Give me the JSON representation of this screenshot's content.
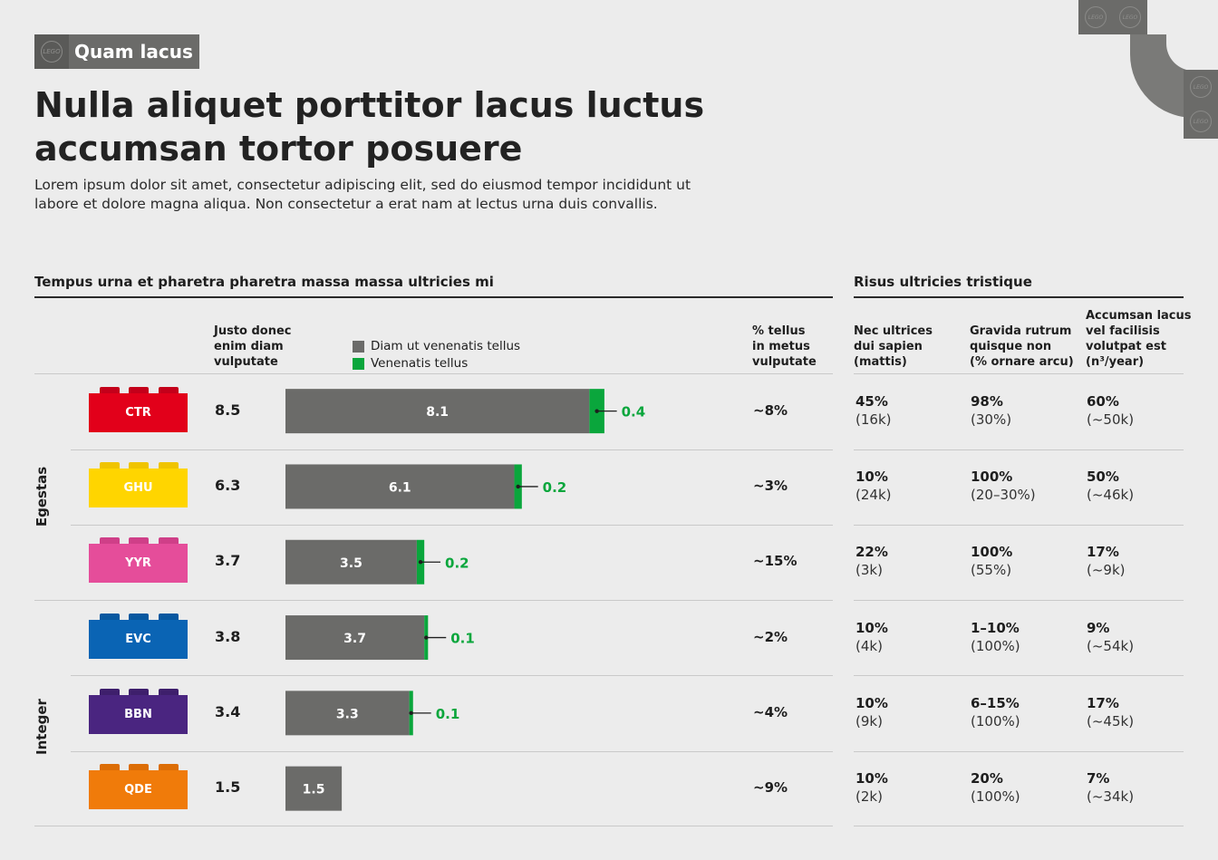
{
  "tag": {
    "label": "Quam lacus",
    "logo_text": "LEGO"
  },
  "title": "Nulla aliquet porttitor lacus luctus accumsan tortor posuere",
  "subtitle": "Lorem ipsum dolor sit amet, consectetur adipiscing elit, sed do eiusmod tempor incididunt ut labore et dolore magna aliqua. Non consectetur a erat nam at lectus urna duis convallis.",
  "left_section": {
    "title": "Tempus urna et pharetra pharetra massa massa ultricies mi",
    "col_total": [
      "Justo donec",
      "enim diam",
      "vulputate"
    ],
    "legend": [
      {
        "label": "Diam ut venenatis tellus",
        "color": "#6b6b69"
      },
      {
        "label": "Venenatis tellus",
        "color": "#0aa63c"
      }
    ],
    "col_pct": [
      "% tellus",
      "in metus",
      "vulputate"
    ]
  },
  "right_section": {
    "title": "Risus ultricies tristique",
    "col1": [
      "Nec ultrices",
      "dui sapien",
      "(mattis)"
    ],
    "col2": [
      "Gravida rutrum",
      "quisque non",
      "(% ornare arcu)"
    ],
    "col3": [
      "Accumsan lacus",
      "vel facilisis",
      "volutpat est",
      "(n³/year)"
    ]
  },
  "groups": [
    "Egestas",
    "Integer"
  ],
  "chart_data": {
    "type": "bar",
    "orientation": "horizontal",
    "stacked": true,
    "categories": [
      "CTR",
      "GHU",
      "YYR",
      "EVC",
      "BBN",
      "QDE"
    ],
    "groups": [
      {
        "name": "Egestas",
        "categories": [
          "CTR",
          "GHU",
          "YYR"
        ]
      },
      {
        "name": "Integer",
        "categories": [
          "EVC",
          "BBN",
          "QDE"
        ]
      }
    ],
    "series": [
      {
        "name": "Diam ut venenatis tellus",
        "color": "#6b6b69",
        "values": [
          8.1,
          6.1,
          3.5,
          3.7,
          3.3,
          1.5
        ]
      },
      {
        "name": "Venenatis tellus",
        "color": "#0aa63c",
        "values": [
          0.4,
          0.2,
          0.2,
          0.1,
          0.1,
          0.0
        ]
      }
    ],
    "xlim": [
      0,
      10
    ],
    "totals": [
      "8.5",
      "6.3",
      "3.7",
      "3.8",
      "3.4",
      "1.5"
    ],
    "grey_labels": [
      "8.1",
      "6.1",
      "3.5",
      "3.7",
      "3.3",
      "1.5"
    ],
    "green_labels": [
      "0.4",
      "0.2",
      "0.2",
      "0.1",
      "0.1",
      ""
    ],
    "percent": [
      "~8%",
      "~3%",
      "~15%",
      "~2%",
      "~4%",
      "~9%"
    ]
  },
  "rows": [
    {
      "code": "CTR",
      "color": "#e2001a",
      "stud": "#c4001a",
      "stat1": [
        "45%",
        "(16k)"
      ],
      "stat2": [
        "98%",
        "(30%)"
      ],
      "stat3": [
        "60%",
        "(~50k)"
      ]
    },
    {
      "code": "GHU",
      "color": "#ffd500",
      "stud": "#f0c400",
      "stat1": [
        "10%",
        "(24k)"
      ],
      "stat2": [
        "100%",
        "(20–30%)"
      ],
      "stat3": [
        "50%",
        "(~46k)"
      ]
    },
    {
      "code": "YYR",
      "color": "#e54d9a",
      "stud": "#cf3f88",
      "stat1": [
        "22%",
        "(3k)"
      ],
      "stat2": [
        "100%",
        "(55%)"
      ],
      "stat3": [
        "17%",
        "(~9k)"
      ]
    },
    {
      "code": "EVC",
      "color": "#0a64b4",
      "stud": "#0858a0",
      "stat1": [
        "10%",
        "(4k)"
      ],
      "stat2": [
        "1–10%",
        "(100%)"
      ],
      "stat3": [
        "9%",
        "(~54k)"
      ]
    },
    {
      "code": "BBN",
      "color": "#4a2580",
      "stud": "#3e1f6c",
      "stat1": [
        "10%",
        "(9k)"
      ],
      "stat2": [
        "6–15%",
        "(100%)"
      ],
      "stat3": [
        "17%",
        "(~45k)"
      ]
    },
    {
      "code": "QDE",
      "color": "#f07b0a",
      "stud": "#dc6d05",
      "stat1": [
        "10%",
        "(2k)"
      ],
      "stat2": [
        "20%",
        "(100%)"
      ],
      "stat3": [
        "7%",
        "(~34k)"
      ]
    }
  ]
}
